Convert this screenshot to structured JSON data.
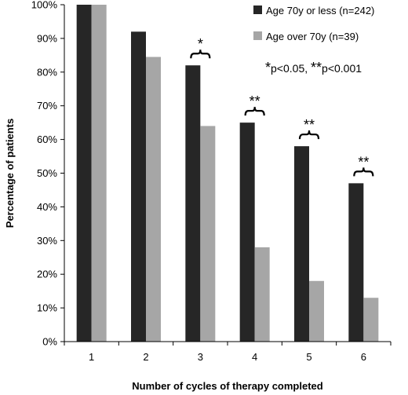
{
  "chart_data": {
    "type": "bar",
    "categories": [
      "1",
      "2",
      "3",
      "4",
      "5",
      "6"
    ],
    "series": [
      {
        "name": "Age 70y or less (n=242)",
        "color": "#262626",
        "values": [
          100,
          92,
          82,
          65,
          58,
          47
        ]
      },
      {
        "name": "Age over 70y (n=39)",
        "color": "#a6a6a6",
        "values": [
          100,
          84.5,
          64,
          28,
          18,
          13
        ]
      }
    ],
    "xlabel": "Number of cycles of therapy completed",
    "ylabel": "Percentage of patients",
    "ylim": [
      0,
      100
    ],
    "yticks": [
      "0%",
      "10%",
      "20%",
      "30%",
      "40%",
      "50%",
      "60%",
      "70%",
      "80%",
      "90%",
      "100%"
    ],
    "grid": false,
    "legend_position": "top-right",
    "significance_note": {
      "star1": "*",
      "text1": "p<0.05, ",
      "star2": "**",
      "text2": "p<0.001"
    },
    "annotations": [
      {
        "category": "3",
        "label": "*"
      },
      {
        "category": "4",
        "label": "**"
      },
      {
        "category": "5",
        "label": "**"
      },
      {
        "category": "6",
        "label": "**"
      }
    ]
  }
}
